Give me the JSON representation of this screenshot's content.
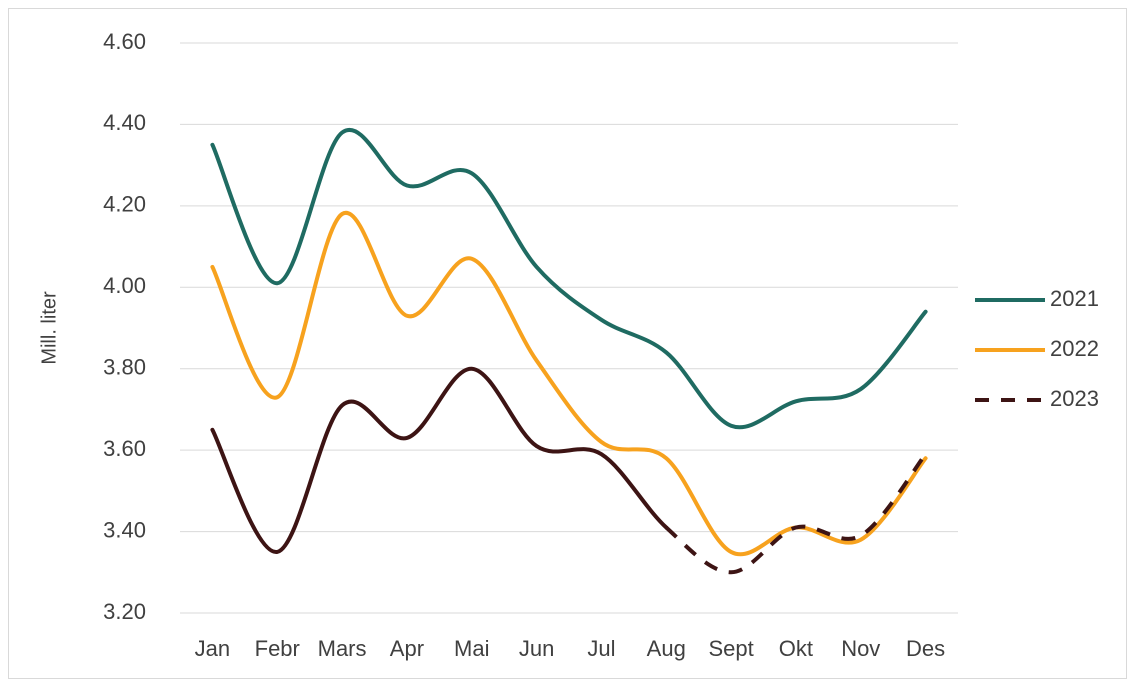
{
  "chart_data": {
    "type": "line",
    "y_label": "Mill. liter",
    "categories": [
      "Jan",
      "Febr",
      "Mars",
      "Apr",
      "Mai",
      "Jun",
      "Jul",
      "Aug",
      "Sept",
      "Okt",
      "Nov",
      "Des"
    ],
    "series": [
      {
        "name": "2021",
        "color": "#1f6b62",
        "values": [
          4.35,
          4.01,
          4.38,
          4.25,
          4.28,
          4.05,
          3.92,
          3.84,
          3.66,
          3.72,
          3.75,
          3.94
        ]
      },
      {
        "name": "2022",
        "color": "#f7a21e",
        "values": [
          4.05,
          3.73,
          4.18,
          3.93,
          4.07,
          3.82,
          3.62,
          3.58,
          3.35,
          3.41,
          3.38,
          3.58
        ]
      },
      {
        "name": "2023",
        "color": "#3d1414",
        "dashed_from_index": 7,
        "values": [
          3.65,
          3.35,
          3.71,
          3.63,
          3.8,
          3.61,
          3.59,
          3.41,
          3.3,
          3.41,
          3.39,
          3.59
        ]
      }
    ],
    "ylim": [
      3.2,
      4.6
    ],
    "yticks": [
      {
        "value": 3.2,
        "label": "3.20"
      },
      {
        "value": 3.4,
        "label": "3.40"
      },
      {
        "value": 3.6,
        "label": "3.60"
      },
      {
        "value": 3.8,
        "label": "3.80"
      },
      {
        "value": 4.0,
        "label": "4.00"
      },
      {
        "value": 4.2,
        "label": "4.20"
      },
      {
        "value": 4.4,
        "label": "4.40"
      },
      {
        "value": 4.6,
        "label": "4.60"
      }
    ],
    "grid": true,
    "smooth": true,
    "legend": "right"
  }
}
